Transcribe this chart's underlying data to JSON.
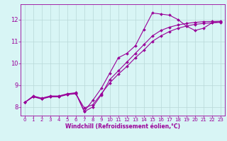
{
  "background_color": "#d8f5f5",
  "grid_color": "#b8d8d8",
  "line_color": "#990099",
  "marker": "D",
  "marker_size": 2,
  "line_width": 0.8,
  "xlim": [
    -0.5,
    23.5
  ],
  "ylim": [
    7.6,
    12.7
  ],
  "xlabel": "Windchill (Refroidissement éolien,°C)",
  "xlabel_fontsize": 5.5,
  "tick_fontsize": 5,
  "xticks": [
    0,
    1,
    2,
    3,
    4,
    5,
    6,
    7,
    8,
    9,
    10,
    11,
    12,
    13,
    14,
    15,
    16,
    17,
    18,
    19,
    20,
    21,
    22,
    23
  ],
  "yticks": [
    8,
    9,
    10,
    11,
    12
  ],
  "series": [
    {
      "x": [
        0,
        1,
        2,
        3,
        4,
        5,
        6,
        7,
        8,
        9,
        10,
        11,
        12,
        13,
        14,
        15,
        16,
        17,
        18,
        19,
        20,
        21,
        22,
        23
      ],
      "y": [
        8.2,
        8.5,
        8.4,
        8.5,
        8.5,
        8.6,
        8.65,
        7.8,
        8.3,
        8.85,
        9.55,
        10.25,
        10.45,
        10.8,
        11.55,
        12.3,
        12.25,
        12.2,
        12.0,
        11.7,
        11.5,
        11.6,
        11.85,
        11.9
      ]
    },
    {
      "x": [
        0,
        1,
        2,
        3,
        4,
        5,
        6,
        7,
        8,
        9,
        10,
        11,
        12,
        13,
        14,
        15,
        16,
        17,
        18,
        19,
        20,
        21,
        22,
        23
      ],
      "y": [
        8.2,
        8.48,
        8.38,
        8.48,
        8.48,
        8.58,
        8.62,
        7.78,
        8.0,
        8.55,
        9.25,
        9.65,
        10.05,
        10.45,
        10.85,
        11.25,
        11.5,
        11.65,
        11.75,
        11.82,
        11.87,
        11.9,
        11.91,
        11.92
      ]
    },
    {
      "x": [
        0,
        1,
        2,
        3,
        4,
        5,
        6,
        7,
        8,
        9,
        10,
        11,
        12,
        13,
        14,
        15,
        16,
        17,
        18,
        19,
        20,
        21,
        22,
        23
      ],
      "y": [
        8.2,
        8.46,
        8.36,
        8.46,
        8.46,
        8.56,
        8.6,
        7.95,
        8.1,
        8.6,
        9.1,
        9.5,
        9.85,
        10.25,
        10.6,
        11.0,
        11.25,
        11.45,
        11.6,
        11.7,
        11.78,
        11.82,
        11.85,
        11.87
      ]
    }
  ]
}
